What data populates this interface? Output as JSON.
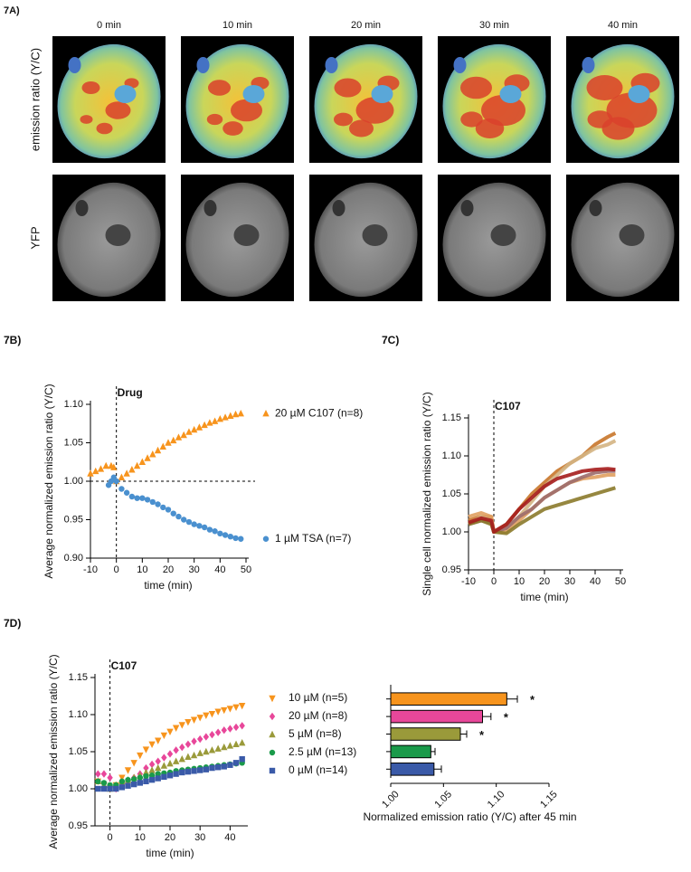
{
  "panel_a": {
    "label": "7A)",
    "columns": [
      "0 min",
      "10 min",
      "20 min",
      "30 min",
      "40 min"
    ],
    "rows": [
      "emission ratio (Y/C)",
      "YFP"
    ]
  },
  "chart_data": [
    {
      "type": "scatter",
      "panel": "7B)",
      "ylabel": "Average normalized emission ratio (Y/C)",
      "xlabel": "time (min)",
      "xlim": [
        -10,
        50
      ],
      "xticks": [
        -10,
        0,
        10,
        20,
        30,
        40,
        50
      ],
      "ylim": [
        0.9,
        1.1
      ],
      "yticks": [
        {
          "value": 0.9,
          "label": "0.90"
        },
        {
          "value": 0.95,
          "label": "0.95"
        },
        {
          "value": 1.0,
          "label": "1.00"
        },
        {
          "value": 1.05,
          "label": "1.05"
        },
        {
          "value": 1.1,
          "label": "1.10"
        }
      ],
      "hline": 1.0,
      "vline": 0,
      "annotation": "Drug",
      "legend": "inline",
      "series": [
        {
          "name": "20 µM C107 (n=8)",
          "color": "#f7941d",
          "marker": "triangle-up",
          "x": [
            -10,
            -8,
            -6,
            -4,
            -2,
            -1,
            0,
            2,
            4,
            6,
            8,
            10,
            12,
            14,
            16,
            18,
            20,
            22,
            24,
            26,
            28,
            30,
            32,
            34,
            36,
            38,
            40,
            42,
            44,
            46,
            48
          ],
          "values": [
            1.01,
            1.013,
            1.016,
            1.02,
            1.02,
            1.018,
            1.0,
            1.005,
            1.01,
            1.015,
            1.02,
            1.025,
            1.03,
            1.035,
            1.04,
            1.045,
            1.05,
            1.053,
            1.057,
            1.06,
            1.064,
            1.067,
            1.07,
            1.073,
            1.076,
            1.078,
            1.081,
            1.083,
            1.085,
            1.087,
            1.088
          ]
        },
        {
          "name": "1 µM TSA (n=7)",
          "color": "#4a90cf",
          "marker": "circle",
          "x": [
            -3,
            -2,
            -1,
            0,
            2,
            4,
            6,
            8,
            10,
            12,
            14,
            16,
            18,
            20,
            22,
            24,
            26,
            28,
            30,
            32,
            34,
            36,
            38,
            40,
            42,
            44,
            46,
            48
          ],
          "values": [
            0.995,
            1.0,
            1.005,
            1.0,
            0.99,
            0.985,
            0.98,
            0.978,
            0.978,
            0.976,
            0.973,
            0.97,
            0.966,
            0.963,
            0.958,
            0.954,
            0.95,
            0.947,
            0.944,
            0.942,
            0.94,
            0.937,
            0.935,
            0.932,
            0.93,
            0.928,
            0.926,
            0.925
          ]
        }
      ]
    },
    {
      "type": "line",
      "panel": "7C)",
      "ylabel": "Single cell normalized emission ratio (Y/C)",
      "xlabel": "time (min)",
      "xlim": [
        -10,
        50
      ],
      "xticks": [
        -10,
        0,
        10,
        20,
        30,
        40,
        50
      ],
      "ylim": [
        0.95,
        1.15
      ],
      "yticks": [
        {
          "value": 0.95,
          "label": "0.95"
        },
        {
          "value": 1.0,
          "label": "1.00"
        },
        {
          "value": 1.05,
          "label": "1.05"
        },
        {
          "value": 1.1,
          "label": "1.10"
        },
        {
          "value": 1.15,
          "label": "1.15"
        }
      ],
      "vline": 0,
      "annotation": "C107",
      "x": [
        -10,
        -5,
        -1,
        0,
        5,
        10,
        15,
        20,
        25,
        30,
        35,
        40,
        45,
        48
      ],
      "series": [
        {
          "color": "#c8762a",
          "values": [
            1.015,
            1.02,
            1.02,
            1.0,
            1.01,
            1.03,
            1.05,
            1.065,
            1.08,
            1.09,
            1.1,
            1.115,
            1.125,
            1.13
          ]
        },
        {
          "color": "#d4b483",
          "values": [
            1.01,
            1.02,
            1.015,
            1.0,
            1.005,
            1.02,
            1.04,
            1.06,
            1.075,
            1.09,
            1.1,
            1.11,
            1.115,
            1.12
          ]
        },
        {
          "color": "#e0a060",
          "values": [
            1.02,
            1.025,
            1.02,
            1.0,
            1.0,
            1.015,
            1.03,
            1.045,
            1.055,
            1.065,
            1.07,
            1.072,
            1.075,
            1.075
          ]
        },
        {
          "color": "#9c6b6b",
          "values": [
            1.01,
            1.015,
            1.012,
            1.0,
            1.005,
            1.02,
            1.03,
            1.045,
            1.055,
            1.065,
            1.072,
            1.078,
            1.08,
            1.08
          ]
        },
        {
          "color": "#8b7a2b",
          "values": [
            1.01,
            1.015,
            1.01,
            1.0,
            0.998,
            1.01,
            1.02,
            1.03,
            1.035,
            1.04,
            1.045,
            1.05,
            1.055,
            1.058
          ]
        },
        {
          "color": "#a51c1c",
          "values": [
            1.012,
            1.018,
            1.015,
            1.0,
            1.01,
            1.03,
            1.045,
            1.06,
            1.07,
            1.075,
            1.08,
            1.082,
            1.083,
            1.082
          ]
        }
      ]
    },
    {
      "type": "scatter",
      "panel": "7D)",
      "ylabel": "Average normalized emission ratio (Y/C)",
      "xlabel": "time (min)",
      "xlim": [
        -5,
        45
      ],
      "xticks": [
        0,
        10,
        20,
        30,
        40
      ],
      "ylim": [
        0.95,
        1.15
      ],
      "yticks": [
        {
          "value": 0.95,
          "label": "0.95"
        },
        {
          "value": 1.0,
          "label": "1.00"
        },
        {
          "value": 1.05,
          "label": "1.05"
        },
        {
          "value": 1.1,
          "label": "1.10"
        },
        {
          "value": 1.15,
          "label": "1.15"
        }
      ],
      "vline": 0,
      "annotation": "C107",
      "legend": "right",
      "x": [
        -4,
        -2,
        0,
        2,
        4,
        6,
        8,
        10,
        12,
        14,
        16,
        18,
        20,
        22,
        24,
        26,
        28,
        30,
        32,
        34,
        36,
        38,
        40,
        42,
        44
      ],
      "series": [
        {
          "name": "10 µM (n=5)",
          "color": "#f7941d",
          "marker": "triangle-down",
          "values": [
            1.01,
            1.005,
            1.0,
            1.005,
            1.015,
            1.025,
            1.035,
            1.045,
            1.053,
            1.06,
            1.065,
            1.072,
            1.077,
            1.082,
            1.086,
            1.09,
            1.093,
            1.096,
            1.099,
            1.101,
            1.104,
            1.106,
            1.108,
            1.11,
            1.112
          ]
        },
        {
          "name": "20 µM (n=8)",
          "color": "#e8479a",
          "marker": "diamond",
          "values": [
            1.02,
            1.02,
            1.015,
            1.0,
            1.005,
            1.01,
            1.015,
            1.02,
            1.028,
            1.033,
            1.037,
            1.042,
            1.047,
            1.052,
            1.056,
            1.06,
            1.064,
            1.067,
            1.07,
            1.073,
            1.076,
            1.079,
            1.081,
            1.083,
            1.085
          ]
        },
        {
          "name": "5 µM (n=8)",
          "color": "#9a9a3a",
          "marker": "triangle-up",
          "values": [
            1.01,
            1.005,
            1.0,
            1.005,
            1.01,
            1.012,
            1.015,
            1.018,
            1.022,
            1.025,
            1.028,
            1.031,
            1.034,
            1.037,
            1.04,
            1.043,
            1.045,
            1.048,
            1.05,
            1.052,
            1.054,
            1.056,
            1.058,
            1.06,
            1.062
          ]
        },
        {
          "name": "2.5 µM (n=13)",
          "color": "#1a9a4a",
          "marker": "circle",
          "values": [
            1.01,
            1.008,
            1.005,
            1.005,
            1.01,
            1.012,
            1.013,
            1.015,
            1.017,
            1.018,
            1.02,
            1.021,
            1.022,
            1.024,
            1.025,
            1.026,
            1.027,
            1.028,
            1.029,
            1.03,
            1.031,
            1.032,
            1.033,
            1.034,
            1.035
          ]
        },
        {
          "name": "0 µM (n=14)",
          "color": "#3a5aa8",
          "marker": "square",
          "values": [
            1.0,
            1.0,
            1.0,
            1.0,
            1.002,
            1.004,
            1.006,
            1.008,
            1.01,
            1.012,
            1.014,
            1.016,
            1.018,
            1.02,
            1.022,
            1.023,
            1.024,
            1.025,
            1.026,
            1.028,
            1.029,
            1.03,
            1.032,
            1.035,
            1.04
          ]
        }
      ]
    },
    {
      "type": "hbar",
      "xlabel": "Normalized emission ratio (Y/C) after 45 min",
      "xlim": [
        1.0,
        1.15
      ],
      "xticks": [
        {
          "value": 1.0,
          "label": "1.00"
        },
        {
          "value": 1.05,
          "label": "1.05"
        },
        {
          "value": 1.1,
          "label": "1.10"
        },
        {
          "value": 1.15,
          "label": "1.15"
        }
      ],
      "values": [
        1.11,
        1.087,
        1.066,
        1.038,
        1.041
      ],
      "errors": [
        0.01,
        0.008,
        0.006,
        0.004,
        0.007
      ],
      "colors": [
        "#f7941d",
        "#e8479a",
        "#9a9a3a",
        "#1a9a4a",
        "#3a5aa8"
      ],
      "significance": [
        "*",
        "*",
        "*",
        null,
        null
      ]
    }
  ]
}
